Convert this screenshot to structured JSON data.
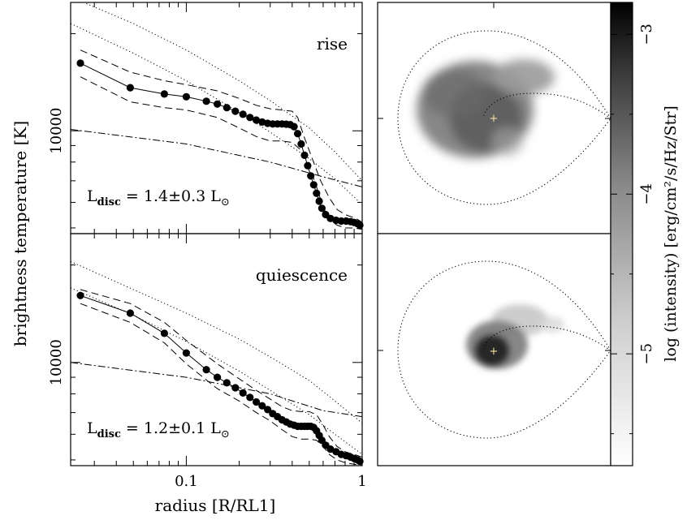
{
  "chart_data": {
    "type": "figure",
    "ylabel": "brightness temperature [K]",
    "xlabel": "radius [R/RL1]",
    "x_scale": "log",
    "xlim": [
      0.022,
      1.0
    ],
    "x_tick_labels": [
      "0.1",
      "1"
    ],
    "y_scale": "log",
    "ylim": [
      4800,
      25000
    ],
    "y_tick_label": "10000",
    "colorbar": {
      "label": "log (intensity) [erg/cm²/s/Hz/Str]",
      "range": [
        -5.7,
        -2.8
      ],
      "tick_labels": [
        "−3",
        "−4",
        "−5"
      ],
      "tick_values": [
        -3,
        -4,
        -5
      ],
      "colormap": "grayscale, dark = high intensity"
    },
    "panels": [
      {
        "label": "rise",
        "luminosity_text": {
          "prefix": "L",
          "sub": "disc",
          "value": "=  1.4±0.3  L",
          "sun": "⊙"
        },
        "points": {
          "x": [
            0.025,
            0.048,
            0.075,
            0.1,
            0.13,
            0.15,
            0.17,
            0.19,
            0.21,
            0.23,
            0.25,
            0.27,
            0.29,
            0.31,
            0.33,
            0.35,
            0.37,
            0.39,
            0.41,
            0.43,
            0.45,
            0.47,
            0.49,
            0.51,
            0.53,
            0.55,
            0.57,
            0.59,
            0.62,
            0.66,
            0.71,
            0.76,
            0.81,
            0.86,
            0.9,
            0.94,
            0.97
          ],
          "y": [
            16200,
            13600,
            13000,
            12750,
            12350,
            12100,
            11800,
            11500,
            11250,
            11000,
            10800,
            10650,
            10550,
            10500,
            10500,
            10500,
            10480,
            10450,
            10300,
            9800,
            9100,
            8400,
            7800,
            7250,
            6800,
            6400,
            6050,
            5750,
            5500,
            5350,
            5280,
            5250,
            5250,
            5230,
            5200,
            5150,
            5100
          ]
        },
        "upper": {
          "x": [
            0.025,
            0.048,
            0.075,
            0.1,
            0.15,
            0.2,
            0.25,
            0.3,
            0.35,
            0.4,
            0.43,
            0.47,
            0.52,
            0.58,
            0.65,
            0.72,
            0.8,
            0.88,
            0.95,
            1.0
          ],
          "y": [
            17800,
            15200,
            14300,
            13900,
            13300,
            12600,
            12000,
            11700,
            11600,
            11500,
            11000,
            9500,
            8200,
            7000,
            6200,
            5700,
            5500,
            5400,
            5300,
            5200
          ]
        },
        "lower": {
          "x": [
            0.025,
            0.048,
            0.075,
            0.1,
            0.15,
            0.2,
            0.25,
            0.3,
            0.35,
            0.4,
            0.45,
            0.5,
            0.55,
            0.6,
            0.65,
            0.72,
            0.8,
            0.9,
            1.0
          ],
          "y": [
            14700,
            12300,
            11800,
            11600,
            11000,
            10200,
            9600,
            9300,
            9300,
            9200,
            8700,
            7800,
            6700,
            5800,
            5300,
            5100,
            5000,
            5000,
            4950
          ]
        },
        "dotted_upper": {
          "x": [
            0.022,
            0.05,
            0.1,
            0.2,
            0.3,
            0.5,
            0.7,
            1.0
          ],
          "y": [
            26000,
            21500,
            17800,
            14300,
            12400,
            10200,
            8600,
            7000
          ]
        },
        "dotted_lower": {
          "x": [
            0.022,
            0.05,
            0.1,
            0.2,
            0.3,
            0.5,
            0.7,
            1.0
          ],
          "y": [
            21500,
            17400,
            14300,
            11400,
            9900,
            8200,
            7100,
            5900
          ]
        },
        "dashdot": {
          "x": [
            0.022,
            0.1,
            0.3,
            0.6,
            1.0
          ],
          "y": [
            10100,
            9100,
            8000,
            7200,
            6700
          ]
        }
      },
      {
        "label": "quiescence",
        "luminosity_text": {
          "prefix": "L",
          "sub": "disc",
          "value": "=  1.2±0.1  L",
          "sun": "⊙"
        },
        "points": {
          "x": [
            0.025,
            0.048,
            0.075,
            0.1,
            0.13,
            0.15,
            0.17,
            0.19,
            0.21,
            0.23,
            0.25,
            0.27,
            0.29,
            0.31,
            0.33,
            0.35,
            0.37,
            0.39,
            0.41,
            0.43,
            0.45,
            0.47,
            0.49,
            0.51,
            0.53,
            0.55,
            0.57,
            0.59,
            0.62,
            0.66,
            0.71,
            0.76,
            0.81,
            0.86,
            0.9,
            0.94,
            0.97
          ],
          "y": [
            16100,
            14200,
            12300,
            10700,
            9500,
            9000,
            8650,
            8350,
            8050,
            7800,
            7550,
            7350,
            7150,
            6950,
            6800,
            6650,
            6550,
            6450,
            6400,
            6350,
            6350,
            6350,
            6350,
            6350,
            6300,
            6150,
            5950,
            5750,
            5550,
            5400,
            5300,
            5200,
            5150,
            5100,
            5050,
            5000,
            4950
          ]
        },
        "upper": {
          "x": [
            0.025,
            0.048,
            0.075,
            0.1,
            0.15,
            0.2,
            0.25,
            0.3,
            0.35,
            0.4,
            0.45,
            0.5,
            0.55,
            0.6,
            0.65,
            0.72,
            0.8,
            0.9,
            1.0
          ],
          "y": [
            16800,
            15200,
            13300,
            11700,
            9900,
            8900,
            8200,
            7700,
            7300,
            7100,
            7050,
            7050,
            6900,
            6400,
            5900,
            5500,
            5300,
            5200,
            5100
          ]
        },
        "lower": {
          "x": [
            0.025,
            0.048,
            0.075,
            0.1,
            0.15,
            0.2,
            0.25,
            0.3,
            0.35,
            0.4,
            0.45,
            0.5,
            0.55,
            0.6,
            0.65,
            0.72,
            0.8,
            0.9,
            1.0
          ],
          "y": [
            15200,
            13300,
            11500,
            9900,
            8300,
            7600,
            7000,
            6600,
            6200,
            5900,
            5800,
            5800,
            5750,
            5500,
            5200,
            5000,
            4900,
            4850,
            4800
          ]
        },
        "dotted_upper": {
          "x": [
            0.022,
            0.05,
            0.1,
            0.2,
            0.3,
            0.5,
            0.7,
            1.0
          ],
          "y": [
            20500,
            16800,
            14200,
            11800,
            10400,
            8800,
            7600,
            6500
          ]
        },
        "dotted_lower": {
          "x": [
            0.022,
            0.05,
            0.1,
            0.2,
            0.3,
            0.5,
            0.7,
            1.0
          ],
          "y": [
            17000,
            14000,
            11600,
            9400,
            8200,
            6900,
            6000,
            5200
          ]
        },
        "dashdot": {
          "x": [
            0.022,
            0.1,
            0.3,
            0.6,
            1.0
          ],
          "y": [
            10000,
            9000,
            8000,
            7100,
            6800
          ]
        }
      }
    ]
  }
}
